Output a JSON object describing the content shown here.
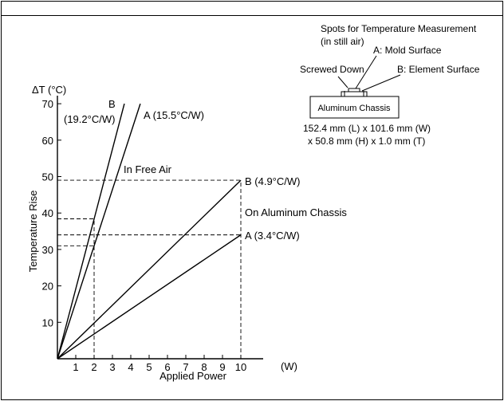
{
  "chart_data": {
    "type": "line",
    "ylabel_unit": "ΔT (°C)",
    "ylabel": "Temperature Rise",
    "xlabel": "Applied Power",
    "xunit": "(W)",
    "xlim": [
      0,
      10
    ],
    "ylim": [
      0,
      70
    ],
    "x_ticks": [
      1,
      2,
      3,
      4,
      5,
      6,
      7,
      8,
      9,
      10
    ],
    "y_ticks": [
      10,
      20,
      30,
      40,
      50,
      60,
      70
    ],
    "grid": false,
    "series": [
      {
        "name": "B (19.2°C/W)",
        "group": "In Free Air",
        "points": [
          [
            0,
            0
          ],
          [
            3.65,
            70
          ]
        ]
      },
      {
        "name": "A (15.5°C/W)",
        "group": "In Free Air",
        "points": [
          [
            0,
            0
          ],
          [
            4.52,
            70
          ]
        ]
      },
      {
        "name": "B (4.9°C/W)",
        "group": "On Aluminum Chassis",
        "points": [
          [
            0,
            0
          ],
          [
            10,
            49
          ]
        ]
      },
      {
        "name": "A (3.4°C/W)",
        "group": "On Aluminum Chassis",
        "points": [
          [
            0,
            0
          ],
          [
            10,
            34
          ]
        ]
      }
    ],
    "reference_lines": [
      {
        "from": [
          0,
          49
        ],
        "to": [
          10,
          49
        ]
      },
      {
        "from": [
          0,
          34
        ],
        "to": [
          10,
          34
        ]
      },
      {
        "from": [
          0,
          38.4
        ],
        "to": [
          2,
          38.4
        ]
      },
      {
        "from": [
          0,
          31
        ],
        "to": [
          2,
          31
        ]
      },
      {
        "from": [
          2,
          0
        ],
        "to": [
          2,
          38.4
        ]
      },
      {
        "from": [
          10,
          0
        ],
        "to": [
          10,
          49
        ]
      }
    ],
    "annotations": {
      "free_air": "In Free Air",
      "chassis": "On Aluminum Chassis",
      "label_b_free": "B",
      "label_b_free_rate": "(19.2°C/W)",
      "label_a_free": "A (15.5°C/W)",
      "label_b_chassis": "B (4.9°C/W)",
      "label_a_chassis": "A (3.4°C/W)"
    }
  },
  "inset": {
    "title_line1": "Spots for Temperature Measurement",
    "title_line2": "(in still air)",
    "label_a": "A: Mold Surface",
    "label_screwed": "Screwed Down",
    "label_b": "B: Element Surface",
    "chassis_label": "Aluminum Chassis",
    "dims_line1": "152.4 mm (L) x 101.6 mm (W)",
    "dims_line2": "x 50.8 mm (H) x 1.0 mm (T)"
  }
}
